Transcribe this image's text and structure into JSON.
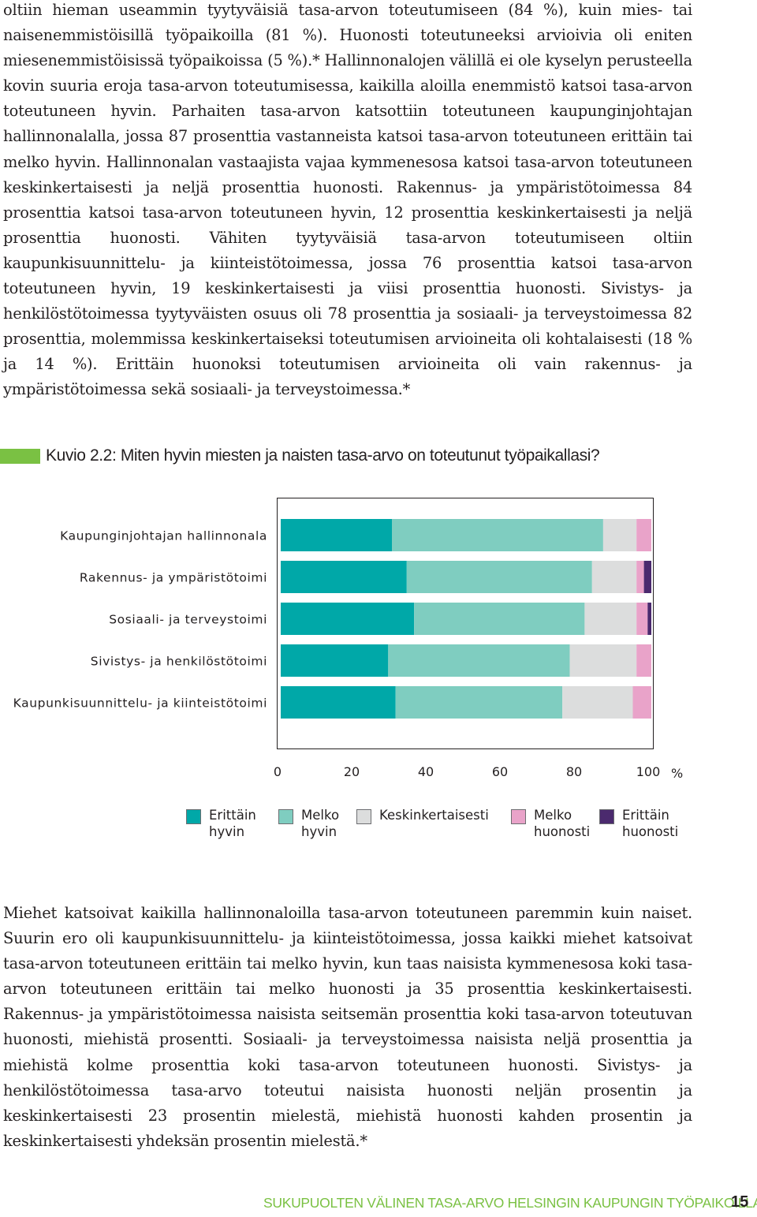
{
  "paragraph_top": "oltiin hieman useammin tyytyväisiä tasa-arvon toteutumiseen (84 %), kuin mies- tai naisenemmistöisillä työpaikoilla (81 %). Huonosti toteutuneeksi arvioivia oli eniten miesenemmistöisissä työpaikoissa (5 %).* Hallinnonalojen välillä ei ole kyselyn perusteella kovin suuria eroja tasa-arvon toteutumisessa, kaikilla aloilla enemmistö katsoi tasa-arvon toteutuneen hyvin. Parhaiten tasa-arvon katsottiin toteutuneen kaupunginjohtajan hallinnonalalla, jossa 87 prosenttia vastanneista katsoi tasa-arvon toteutuneen erittäin tai melko hyvin. Hallinnonalan vastaajista vajaa kymmenesosa katsoi tasa-arvon toteutuneen keskinkertaisesti ja neljä prosenttia huonosti. Rakennus- ja ympäristötoimessa 84 prosenttia katsoi tasa-arvon toteutuneen hyvin, 12 prosenttia keskinkertaisesti ja neljä prosenttia huonosti. Vähiten tyytyväisiä tasa-arvon toteutumiseen oltiin kaupunkisuunnittelu- ja kiinteistötoimessa, jossa 76 prosenttia katsoi tasa-arvon toteutuneen hyvin, 19 keskinkertaisesti ja viisi prosenttia huonosti. Sivistys- ja henkilöstötoimessa tyytyväisten osuus oli 78 prosenttia ja sosiaali- ja terveystoimessa 82 prosenttia, molemmissa keskinkertaiseksi toteutumisen arvioineita oli kohtalaisesti (18 % ja 14 %). Erittäin huonoksi toteutumisen arvioineita oli vain rakennus- ja ympäristötoimessa sekä sosiaali- ja terveystoimessa.*",
  "figure": {
    "title": "Kuvio 2.2: Miten hyvin miesten ja naisten tasa-arvo on toteutunut työpaikallasi?",
    "marker_color": "#7ac143"
  },
  "chart_data": {
    "type": "bar",
    "orientation": "horizontal",
    "stacked": true,
    "categories": [
      "Kaupunginjohtajan hallinnonala",
      "Rakennus- ja ympäristötoimi",
      "Sosiaali- ja terveystoimi",
      "Sivistys- ja henkilöstötoimi",
      "Kaupunkisuunnittelu- ja kiinteistötoimi"
    ],
    "series": [
      {
        "name": "Erittäin hyvin",
        "color": "#00a8a8",
        "values": [
          30,
          34,
          36,
          29,
          31
        ]
      },
      {
        "name": "Melko hyvin",
        "color": "#7fcdc0",
        "values": [
          57,
          50,
          46,
          49,
          45
        ]
      },
      {
        "name": "Keskinkertaisesti",
        "color": "#dcdddd",
        "values": [
          9,
          12,
          14,
          18,
          19
        ]
      },
      {
        "name": "Melko huonosti",
        "color": "#e9a3c9",
        "values": [
          4,
          2,
          3,
          4,
          5
        ]
      },
      {
        "name": "Erittäin huonosti",
        "color": "#4b2a6e",
        "values": [
          0,
          2,
          1,
          0,
          0
        ]
      }
    ],
    "xlim": [
      0,
      100
    ],
    "xticks": [
      "0",
      "20",
      "40",
      "60",
      "80",
      "100"
    ],
    "xunit": "%",
    "legend_position": "bottom"
  },
  "legend_items": [
    {
      "lines": [
        "Erittäin",
        "hyvin"
      ]
    },
    {
      "lines": [
        "Melko",
        "hyvin"
      ]
    },
    {
      "lines": [
        "Keskinkertaisesti"
      ]
    },
    {
      "lines": [
        "Melko",
        "huonosti"
      ]
    },
    {
      "lines": [
        "Erittäin",
        "huonosti"
      ]
    }
  ],
  "paragraph_bottom": "Miehet katsoivat kaikilla hallinnonaloilla tasa-arvon toteutuneen paremmin kuin naiset. Suurin ero oli kaupunkisuunnittelu- ja kiinteistötoimessa, jossa kaikki miehet katsoivat tasa-arvon toteutuneen erittäin tai melko hyvin, kun taas naisista kymmenesosa koki tasa-arvon toteutuneen erittäin tai melko huonosti ja 35 prosenttia keskinkertaisesti. Rakennus- ja ympäristötoimessa naisista seitsemän prosenttia koki tasa-arvon toteutuvan huonosti, miehistä prosentti. Sosiaali- ja terveystoimessa naisista neljä prosenttia ja miehistä kolme prosenttia koki tasa-arvon toteutuneen huonosti. Sivistys- ja henkilöstötoimessa tasa-arvo toteutui naisista huonosti neljän prosentin ja keskinkertaisesti 23 prosentin mielestä, miehistä huonosti kahden prosentin ja keskinkertaisesti yhdeksän prosentin mielestä.*",
  "footer": {
    "running_title": "SUKUPUOLTEN VÄLINEN TASA-ARVO HELSINGIN KAUPUNGIN TYÖPAIKOILLA",
    "page_number": "15",
    "accent_color": "#7ac143"
  }
}
